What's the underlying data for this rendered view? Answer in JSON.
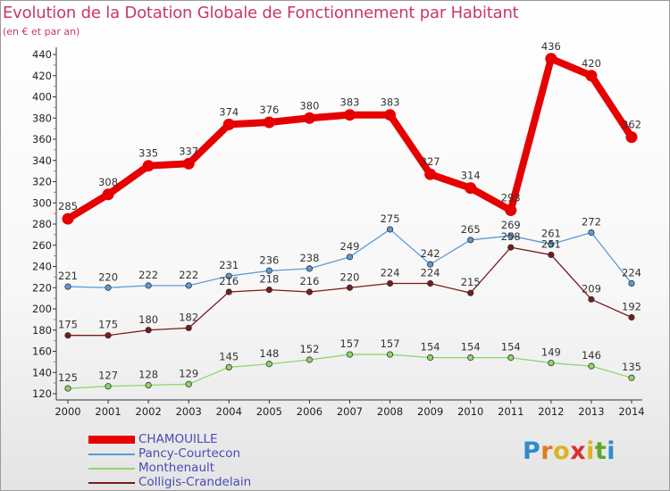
{
  "header": {
    "title": "Evolution de la Dotation Globale de Fonctionnement par Habitant",
    "subtitle": "(en € et par an)"
  },
  "logo": {
    "text": "Proxiti",
    "letter_colors": [
      "#2d8ccf",
      "#e07b1f",
      "#e0b21f",
      "#d8322a",
      "#e0b21f",
      "#5aaa2a",
      "#2d8ccf"
    ]
  },
  "chart_data": {
    "type": "line",
    "title": "Evolution de la Dotation Globale de Fonctionnement par Habitant",
    "subtitle": "(en € et par an)",
    "xlabel": "",
    "ylabel": "",
    "x": [
      "2000",
      "2001",
      "2002",
      "2003",
      "2004",
      "2005",
      "2006",
      "2007",
      "2008",
      "2009",
      "2010",
      "2011",
      "2012",
      "2013",
      "2014"
    ],
    "ylim": [
      120,
      440
    ],
    "yticks": [
      "120",
      "140",
      "160",
      "180",
      "200",
      "220",
      "240",
      "260",
      "280",
      "300",
      "320",
      "340",
      "360",
      "380",
      "400",
      "420",
      "440"
    ],
    "grid": false,
    "legend_position": "bottom-left",
    "series": [
      {
        "name": "CHAMOUILLE",
        "color": "#e60000",
        "line_style": "thick",
        "values": [
          285,
          308,
          335,
          337,
          374,
          376,
          380,
          383,
          383,
          327,
          314,
          293,
          436,
          420,
          362
        ]
      },
      {
        "name": "Pancy-Courtecon",
        "color": "#5b9bd5",
        "line_style": "thin",
        "values": [
          221,
          220,
          222,
          222,
          231,
          236,
          238,
          249,
          275,
          242,
          265,
          269,
          261,
          272,
          224
        ]
      },
      {
        "name": "Monthenault",
        "color": "#8fd66a",
        "line_style": "thin",
        "values": [
          125,
          127,
          128,
          129,
          145,
          148,
          152,
          157,
          157,
          154,
          154,
          154,
          149,
          146,
          135
        ]
      },
      {
        "name": "Colligis-Crandelain",
        "color": "#7a1a1a",
        "line_style": "thin",
        "values": [
          175,
          175,
          180,
          182,
          216,
          218,
          216,
          220,
          224,
          224,
          215,
          258,
          251,
          209,
          192
        ]
      }
    ]
  }
}
